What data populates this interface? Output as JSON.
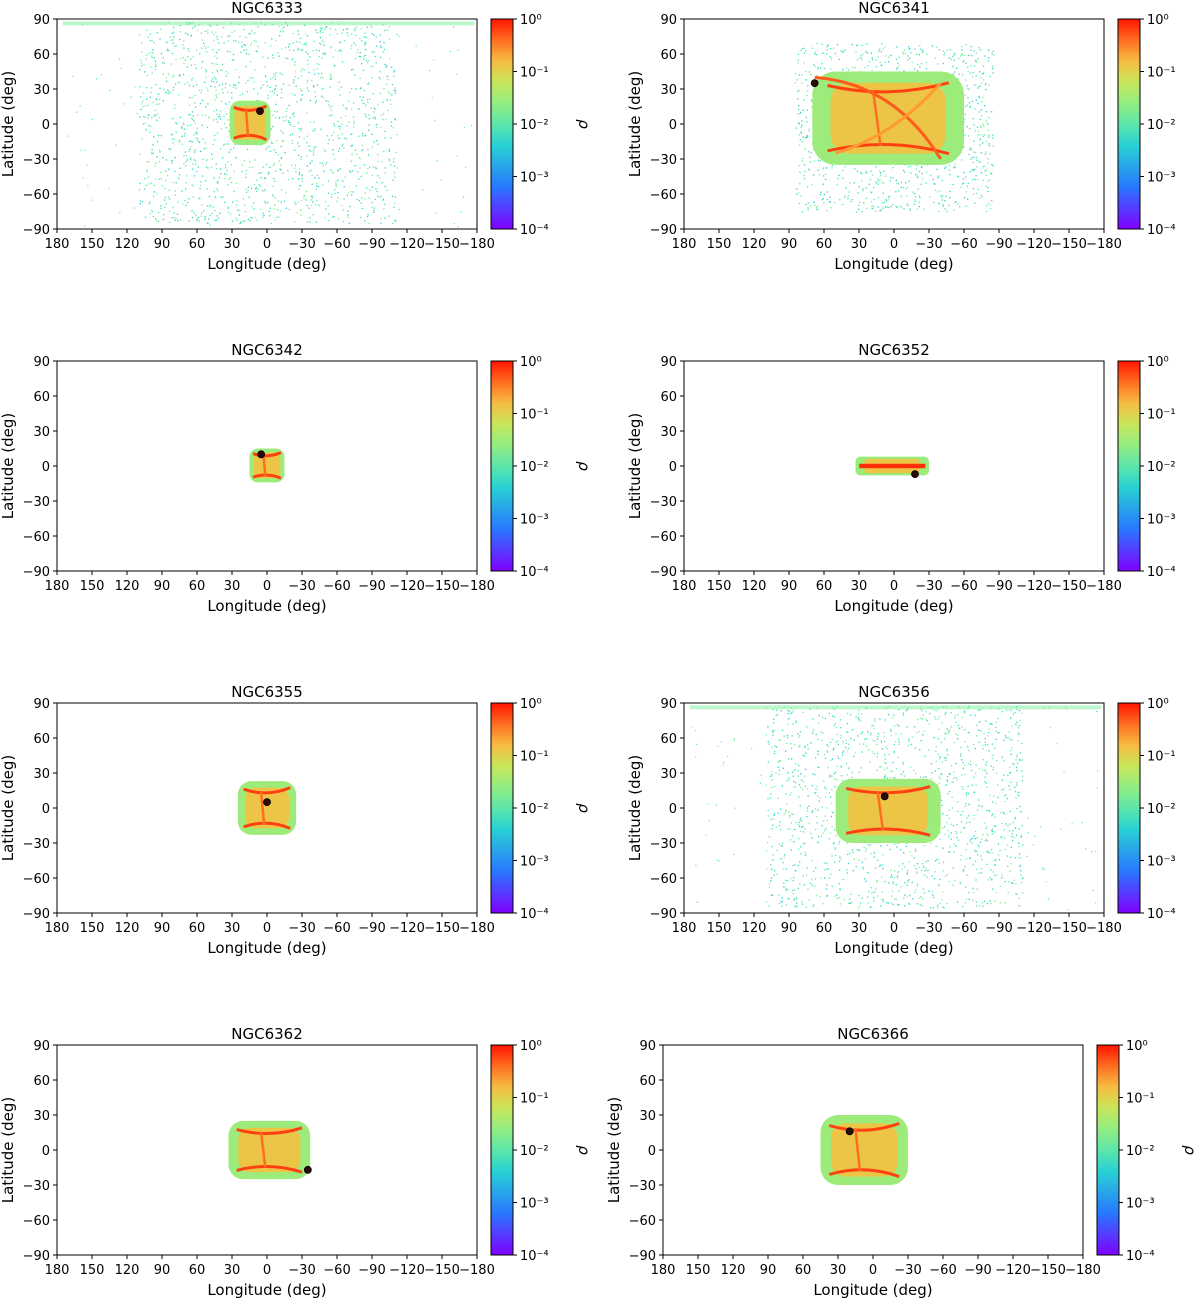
{
  "chart_data": [
    {
      "type": "scatter",
      "title": "NGC6333",
      "xlabel": "Longitude (deg)",
      "ylabel": "Latitude (deg)",
      "x_ticks": [
        "180",
        "150",
        "120",
        "90",
        "60",
        "30",
        "0",
        "−30",
        "−60",
        "−90",
        "−120",
        "−150",
        "−180"
      ],
      "y_ticks": [
        "90",
        "60",
        "30",
        "0",
        "−30",
        "−60",
        "−90"
      ],
      "xlim": [
        180,
        -180
      ],
      "ylim": [
        -90,
        90
      ],
      "colorbar": {
        "label": "ρ",
        "ticks": [
          "10⁰",
          "10⁻¹",
          "10⁻²",
          "10⁻³",
          "10⁻⁴"
        ],
        "scale": "log",
        "range": [
          0.0001,
          1
        ]
      },
      "cluster_position": {
        "lon": 6,
        "lat": 11
      },
      "stream_extent": "wide",
      "dense_region": {
        "lon": [
          -3,
          32
        ],
        "lat": [
          -18,
          20
        ]
      }
    },
    {
      "type": "scatter",
      "title": "NGC6341",
      "xlabel": "Longitude (deg)",
      "ylabel": "Latitude (deg)",
      "x_ticks": [
        "180",
        "150",
        "120",
        "90",
        "60",
        "30",
        "0",
        "−30",
        "−60",
        "−90",
        "−120",
        "−150",
        "−180"
      ],
      "y_ticks": [
        "90",
        "60",
        "30",
        "0",
        "−30",
        "−60",
        "−90"
      ],
      "xlim": [
        180,
        -180
      ],
      "ylim": [
        -90,
        90
      ],
      "colorbar": {
        "label": "ρ",
        "ticks": [
          "10⁰",
          "10⁻¹",
          "10⁻²",
          "10⁻³",
          "10⁻⁴"
        ],
        "scale": "log",
        "range": [
          0.0001,
          1
        ]
      },
      "cluster_position": {
        "lon": 68,
        "lat": 35
      },
      "stream_extent": "butterfly",
      "dense_region": {
        "lon": [
          -60,
          70
        ],
        "lat": [
          -35,
          45
        ]
      }
    },
    {
      "type": "scatter",
      "title": "NGC6342",
      "xlabel": "Longitude (deg)",
      "ylabel": "Latitude (deg)",
      "x_ticks": [
        "180",
        "150",
        "120",
        "90",
        "60",
        "30",
        "0",
        "−30",
        "−60",
        "−90",
        "−120",
        "−150",
        "−180"
      ],
      "y_ticks": [
        "90",
        "60",
        "30",
        "0",
        "−30",
        "−60",
        "−90"
      ],
      "xlim": [
        180,
        -180
      ],
      "ylim": [
        -90,
        90
      ],
      "colorbar": {
        "label": "ρ",
        "ticks": [
          "10⁰",
          "10⁻¹",
          "10⁻²",
          "10⁻³",
          "10⁻⁴"
        ],
        "scale": "log",
        "range": [
          0.0001,
          1
        ]
      },
      "cluster_position": {
        "lon": 5,
        "lat": 10
      },
      "stream_extent": "compact",
      "dense_region": {
        "lon": [
          -15,
          15
        ],
        "lat": [
          -14,
          15
        ]
      }
    },
    {
      "type": "scatter",
      "title": "NGC6352",
      "xlabel": "Longitude (deg)",
      "ylabel": "Latitude (deg)",
      "x_ticks": [
        "180",
        "150",
        "120",
        "90",
        "60",
        "30",
        "0",
        "−30",
        "−60",
        "−90",
        "−120",
        "−150",
        "−180"
      ],
      "y_ticks": [
        "90",
        "60",
        "30",
        "0",
        "−30",
        "−60",
        "−90"
      ],
      "xlim": [
        180,
        -180
      ],
      "ylim": [
        -90,
        90
      ],
      "colorbar": {
        "label": "ρ",
        "ticks": [
          "10⁰",
          "10⁻¹",
          "10⁻²",
          "10⁻³",
          "10⁻⁴"
        ],
        "scale": "log",
        "range": [
          0.0001,
          1
        ]
      },
      "cluster_position": {
        "lon": -18,
        "lat": -7
      },
      "stream_extent": "band",
      "dense_region": {
        "lon": [
          -30,
          33
        ],
        "lat": [
          -8,
          8
        ]
      }
    },
    {
      "type": "scatter",
      "title": "NGC6355",
      "xlabel": "Longitude (deg)",
      "ylabel": "Latitude (deg)",
      "x_ticks": [
        "180",
        "150",
        "120",
        "90",
        "60",
        "30",
        "0",
        "−30",
        "−60",
        "−90",
        "−120",
        "−150",
        "−180"
      ],
      "y_ticks": [
        "90",
        "60",
        "30",
        "0",
        "−30",
        "−60",
        "−90"
      ],
      "xlim": [
        180,
        -180
      ],
      "ylim": [
        -90,
        90
      ],
      "colorbar": {
        "label": "ρ",
        "ticks": [
          "10⁰",
          "10⁻¹",
          "10⁻²",
          "10⁻³",
          "10⁻⁴"
        ],
        "scale": "log",
        "range": [
          0.0001,
          1
        ]
      },
      "cluster_position": {
        "lon": 0,
        "lat": 5
      },
      "stream_extent": "compact",
      "dense_region": {
        "lon": [
          -25,
          25
        ],
        "lat": [
          -23,
          23
        ]
      }
    },
    {
      "type": "scatter",
      "title": "NGC6356",
      "xlabel": "Longitude (deg)",
      "ylabel": "Latitude (deg)",
      "x_ticks": [
        "180",
        "150",
        "120",
        "90",
        "60",
        "30",
        "0",
        "−30",
        "−60",
        "−90",
        "−120",
        "−150",
        "−180"
      ],
      "y_ticks": [
        "90",
        "60",
        "30",
        "0",
        "−30",
        "−60",
        "−90"
      ],
      "xlim": [
        180,
        -180
      ],
      "ylim": [
        -90,
        90
      ],
      "colorbar": {
        "label": "ρ",
        "ticks": [
          "10⁰",
          "10⁻¹",
          "10⁻²",
          "10⁻³",
          "10⁻⁴"
        ],
        "scale": "log",
        "range": [
          0.0001,
          1
        ]
      },
      "cluster_position": {
        "lon": 8,
        "lat": 10
      },
      "stream_extent": "wide",
      "dense_region": {
        "lon": [
          -40,
          50
        ],
        "lat": [
          -30,
          25
        ]
      }
    },
    {
      "type": "scatter",
      "title": "NGC6362",
      "xlabel": "Longitude (deg)",
      "ylabel": "Latitude (deg)",
      "x_ticks": [
        "180",
        "150",
        "120",
        "90",
        "60",
        "30",
        "0",
        "−30",
        "−60",
        "−90",
        "−120",
        "−150",
        "−180"
      ],
      "y_ticks": [
        "90",
        "60",
        "30",
        "0",
        "−30",
        "−60",
        "−90"
      ],
      "xlim": [
        180,
        -180
      ],
      "ylim": [
        -90,
        90
      ],
      "colorbar": {
        "label": "ρ",
        "ticks": [
          "10⁰",
          "10⁻¹",
          "10⁻²",
          "10⁻³",
          "10⁻⁴"
        ],
        "scale": "log",
        "range": [
          0.0001,
          1
        ]
      },
      "cluster_position": {
        "lon": -35,
        "lat": -17
      },
      "stream_extent": "compact",
      "dense_region": {
        "lon": [
          -37,
          33
        ],
        "lat": [
          -25,
          25
        ]
      }
    },
    {
      "type": "scatter",
      "title": "NGC6366",
      "xlabel": "Longitude (deg)",
      "ylabel": "Latitude (deg)",
      "x_ticks": [
        "180",
        "150",
        "120",
        "90",
        "60",
        "30",
        "0",
        "−30",
        "−60",
        "−90",
        "−120",
        "−150",
        "−180"
      ],
      "y_ticks": [
        "90",
        "60",
        "30",
        "0",
        "−30",
        "−60",
        "−90"
      ],
      "xlim": [
        180,
        -180
      ],
      "ylim": [
        -90,
        90
      ],
      "colorbar": {
        "label": "ρ",
        "ticks": [
          "10⁰",
          "10⁻¹",
          "10⁻²",
          "10⁻³",
          "10⁻⁴"
        ],
        "scale": "log",
        "range": [
          0.0001,
          1
        ]
      },
      "cluster_position": {
        "lon": 20,
        "lat": 16
      },
      "stream_extent": "compact",
      "dense_region": {
        "lon": [
          -30,
          45
        ],
        "lat": [
          -30,
          30
        ]
      }
    }
  ]
}
